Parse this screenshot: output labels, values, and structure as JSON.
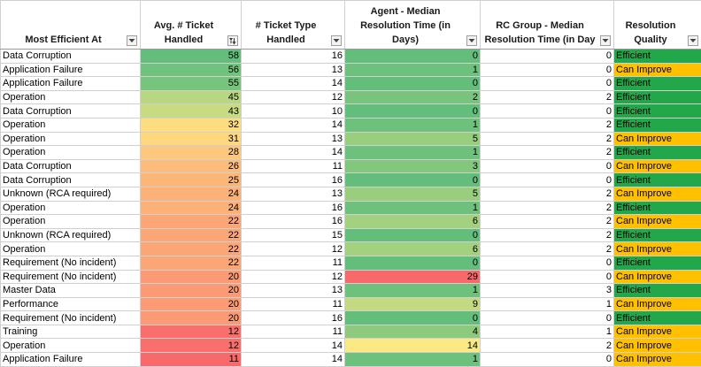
{
  "columns": [
    {
      "label": "Most Efficient At",
      "filter": "dropdown"
    },
    {
      "label": "Avg. # Ticket Handled",
      "filter": "sorted-desc"
    },
    {
      "label": "# Ticket Type Handled",
      "filter": "dropdown"
    },
    {
      "label": "Agent - Median Resolution Time (in Days)",
      "filter": "dropdown"
    },
    {
      "label": "RC Group - Median Resolution Time (in Day",
      "filter": "dropdown"
    },
    {
      "label": "Resolution Quality",
      "filter": "dropdown"
    }
  ],
  "colors": {
    "efficient": "#22a84a",
    "can_improve": "#ffc000",
    "scale_low": "#f8696b",
    "scale_mid": "#ffeb84",
    "scale_high": "#63be7b"
  },
  "rows": [
    {
      "area": "Data Corruption",
      "avg": "58",
      "types": "16",
      "agent": "0",
      "rc": "0",
      "quality": "Efficient"
    },
    {
      "area": "Application Failure",
      "avg": "56",
      "types": "13",
      "agent": "1",
      "rc": "0",
      "quality": "Can Improve"
    },
    {
      "area": "Application Failure",
      "avg": "55",
      "types": "14",
      "agent": "0",
      "rc": "0",
      "quality": "Efficient"
    },
    {
      "area": "Operation",
      "avg": "45",
      "types": "12",
      "agent": "2",
      "rc": "2",
      "quality": "Efficient"
    },
    {
      "area": "Data Corruption",
      "avg": "43",
      "types": "10",
      "agent": "0",
      "rc": "0",
      "quality": "Efficient"
    },
    {
      "area": "Operation",
      "avg": "32",
      "types": "14",
      "agent": "1",
      "rc": "2",
      "quality": "Efficient"
    },
    {
      "area": "Operation",
      "avg": "31",
      "types": "13",
      "agent": "5",
      "rc": "2",
      "quality": "Can Improve"
    },
    {
      "area": "Operation",
      "avg": "28",
      "types": "14",
      "agent": "1",
      "rc": "2",
      "quality": "Efficient"
    },
    {
      "area": "Data Corruption",
      "avg": "26",
      "types": "11",
      "agent": "3",
      "rc": "0",
      "quality": "Can Improve"
    },
    {
      "area": "Data Corruption",
      "avg": "25",
      "types": "16",
      "agent": "0",
      "rc": "0",
      "quality": "Efficient"
    },
    {
      "area": "Unknown (RCA required)",
      "avg": "24",
      "types": "13",
      "agent": "5",
      "rc": "2",
      "quality": "Can Improve"
    },
    {
      "area": "Operation",
      "avg": "24",
      "types": "16",
      "agent": "1",
      "rc": "2",
      "quality": "Efficient"
    },
    {
      "area": "Operation",
      "avg": "22",
      "types": "16",
      "agent": "6",
      "rc": "2",
      "quality": "Can Improve"
    },
    {
      "area": "Unknown (RCA required)",
      "avg": "22",
      "types": "15",
      "agent": "0",
      "rc": "2",
      "quality": "Efficient"
    },
    {
      "area": "Operation",
      "avg": "22",
      "types": "12",
      "agent": "6",
      "rc": "2",
      "quality": "Can Improve"
    },
    {
      "area": "Requirement (No incident)",
      "avg": "22",
      "types": "11",
      "agent": "0",
      "rc": "0",
      "quality": "Efficient"
    },
    {
      "area": "Requirement (No incident)",
      "avg": "20",
      "types": "12",
      "agent": "29",
      "rc": "0",
      "quality": "Can Improve"
    },
    {
      "area": "Master Data",
      "avg": "20",
      "types": "13",
      "agent": "1",
      "rc": "3",
      "quality": "Efficient"
    },
    {
      "area": "Performance",
      "avg": "20",
      "types": "11",
      "agent": "9",
      "rc": "1",
      "quality": "Can Improve"
    },
    {
      "area": "Requirement (No incident)",
      "avg": "20",
      "types": "16",
      "agent": "0",
      "rc": "0",
      "quality": "Efficient"
    },
    {
      "area": "Training",
      "avg": "12",
      "types": "11",
      "agent": "4",
      "rc": "1",
      "quality": "Can Improve"
    },
    {
      "area": "Operation",
      "avg": "12",
      "types": "14",
      "agent": "14",
      "rc": "2",
      "quality": "Can Improve"
    },
    {
      "area": "Application Failure",
      "avg": "11",
      "types": "14",
      "agent": "1",
      "rc": "0",
      "quality": "Can Improve"
    }
  ]
}
